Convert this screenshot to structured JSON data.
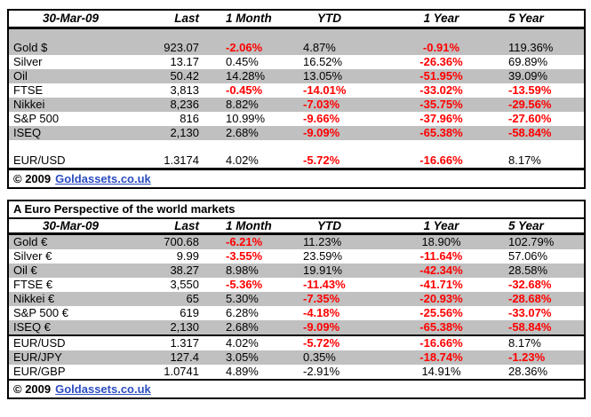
{
  "colors": {
    "negative_red": "#ff0000",
    "band_gray": "#c0c0c0",
    "link_blue": "#2b4dc0",
    "border_black": "#000000",
    "background_white": "#ffffff"
  },
  "table1": {
    "columns": [
      "30-Mar-09",
      "Last",
      "1 Month",
      "YTD",
      "1 Year",
      "5 Year"
    ],
    "rows": [
      {
        "spacer": true,
        "shade": true
      },
      {
        "shade": true,
        "label": "Gold $",
        "last": "923.07",
        "m1": {
          "v": "-2.06%",
          "neg": true
        },
        "ytd": {
          "v": "4.87%"
        },
        "y1": {
          "v": "-0.91%",
          "neg": true
        },
        "y5": {
          "v": "119.36%"
        }
      },
      {
        "shade": false,
        "label": "Silver",
        "last": "13.17",
        "m1": {
          "v": "0.45%"
        },
        "ytd": {
          "v": "16.52%"
        },
        "y1": {
          "v": "-26.36%",
          "neg": true
        },
        "y5": {
          "v": "69.89%"
        }
      },
      {
        "shade": true,
        "label": "Oil",
        "last": "50.42",
        "m1": {
          "v": "14.28%"
        },
        "ytd": {
          "v": "13.05%"
        },
        "y1": {
          "v": "-51.95%",
          "neg": true
        },
        "y5": {
          "v": "39.09%"
        }
      },
      {
        "shade": false,
        "label": "FTSE",
        "last": "3,813",
        "m1": {
          "v": "-0.45%",
          "neg": true
        },
        "ytd": {
          "v": "-14.01%",
          "neg": true
        },
        "y1": {
          "v": "-33.02%",
          "neg": true
        },
        "y5": {
          "v": "-13.59%",
          "neg": true
        }
      },
      {
        "shade": true,
        "label": "Nikkei",
        "last": "8,236",
        "m1": {
          "v": "8.82%"
        },
        "ytd": {
          "v": "-7.03%",
          "neg": true
        },
        "y1": {
          "v": "-35.75%",
          "neg": true
        },
        "y5": {
          "v": "-29.56%",
          "neg": true
        }
      },
      {
        "shade": false,
        "label": "S&P 500",
        "last": "816",
        "m1": {
          "v": "10.99%"
        },
        "ytd": {
          "v": "-9.66%",
          "neg": true
        },
        "y1": {
          "v": "-37.96%",
          "neg": true
        },
        "y5": {
          "v": "-27.60%",
          "neg": true
        }
      },
      {
        "shade": true,
        "label": "ISEQ",
        "last": "2,130",
        "m1": {
          "v": "2.68%"
        },
        "ytd": {
          "v": "-9.09%",
          "neg": true
        },
        "y1": {
          "v": "-65.38%",
          "neg": true
        },
        "y5": {
          "v": "-58.84%",
          "neg": true
        }
      },
      {
        "spacer": true,
        "shade": false
      },
      {
        "shade": false,
        "label": "EUR/USD",
        "last": "1.3174",
        "m1": {
          "v": "4.02%"
        },
        "ytd": {
          "v": "-5.72%",
          "neg": true
        },
        "y1": {
          "v": "-16.66%",
          "neg": true
        },
        "y5": {
          "v": "8.17%"
        }
      }
    ],
    "footer": {
      "copyright": "© 2009",
      "link_text": "Goldassets.co.uk"
    }
  },
  "table2": {
    "title": "A Euro Perspective of the world markets",
    "columns": [
      "30-Mar-09",
      "Last",
      "1 Month",
      "YTD",
      "1 Year",
      "5 Year"
    ],
    "rows": [
      {
        "shade": true,
        "label": "Gold €",
        "last": "700.68",
        "m1": {
          "v": "-6.21%",
          "neg": true
        },
        "ytd": {
          "v": "11.23%"
        },
        "y1": {
          "v": "18.90%"
        },
        "y5": {
          "v": "102.79%"
        }
      },
      {
        "shade": false,
        "label": "Silver €",
        "last": "9.99",
        "m1": {
          "v": "-3.55%",
          "neg": true
        },
        "ytd": {
          "v": "23.59%"
        },
        "y1": {
          "v": "-11.64%",
          "neg": true
        },
        "y5": {
          "v": "57.06%"
        }
      },
      {
        "shade": true,
        "label": "Oil €",
        "last": "38.27",
        "m1": {
          "v": "8.98%"
        },
        "ytd": {
          "v": "19.91%"
        },
        "y1": {
          "v": "-42.34%",
          "neg": true
        },
        "y5": {
          "v": "28.58%"
        }
      },
      {
        "shade": false,
        "label": "FTSE €",
        "last": "3,550",
        "m1": {
          "v": "-5.36%",
          "neg": true
        },
        "ytd": {
          "v": "-11.43%",
          "neg": true
        },
        "y1": {
          "v": "-41.71%",
          "neg": true
        },
        "y5": {
          "v": "-32.68%",
          "neg": true
        }
      },
      {
        "shade": true,
        "label": "Nikkei €",
        "last": "65",
        "m1": {
          "v": "5.30%"
        },
        "ytd": {
          "v": "-7.35%",
          "neg": true
        },
        "y1": {
          "v": "-20.93%",
          "neg": true
        },
        "y5": {
          "v": "-28.68%",
          "neg": true
        }
      },
      {
        "shade": false,
        "label": "S&P 500 €",
        "last": "619",
        "m1": {
          "v": "6.28%"
        },
        "ytd": {
          "v": "-4.18%",
          "neg": true
        },
        "y1": {
          "v": "-25.56%",
          "neg": true
        },
        "y5": {
          "v": "-33.07%",
          "neg": true
        }
      },
      {
        "shade": true,
        "label": "ISEQ €",
        "last": "2,130",
        "m1": {
          "v": "2.68%"
        },
        "ytd": {
          "v": "-9.09%",
          "neg": true
        },
        "y1": {
          "v": "-65.38%",
          "neg": true
        },
        "y5": {
          "v": "-58.84%",
          "neg": true
        }
      },
      {
        "shade": false,
        "separator_above": true,
        "label": "EUR/USD",
        "last": "1.317",
        "m1": {
          "v": "4.02%"
        },
        "ytd": {
          "v": "-5.72%",
          "neg": true
        },
        "y1": {
          "v": "-16.66%",
          "neg": true
        },
        "y5": {
          "v": "8.17%"
        }
      },
      {
        "shade": true,
        "label": "EUR/JPY",
        "last": "127.4",
        "m1": {
          "v": "3.05%"
        },
        "ytd": {
          "v": "0.35%"
        },
        "y1": {
          "v": "-18.74%",
          "neg": true
        },
        "y5": {
          "v": "-1.23%",
          "neg": true
        }
      },
      {
        "shade": false,
        "label": "EUR/GBP",
        "last": "1.0741",
        "m1": {
          "v": "4.89%"
        },
        "ytd": {
          "v": "-2.91%"
        },
        "y1": {
          "v": "14.91%"
        },
        "y5": {
          "v": "28.36%"
        }
      }
    ],
    "footer": {
      "copyright": "© 2009",
      "link_text": "Goldassets.co.uk"
    }
  }
}
